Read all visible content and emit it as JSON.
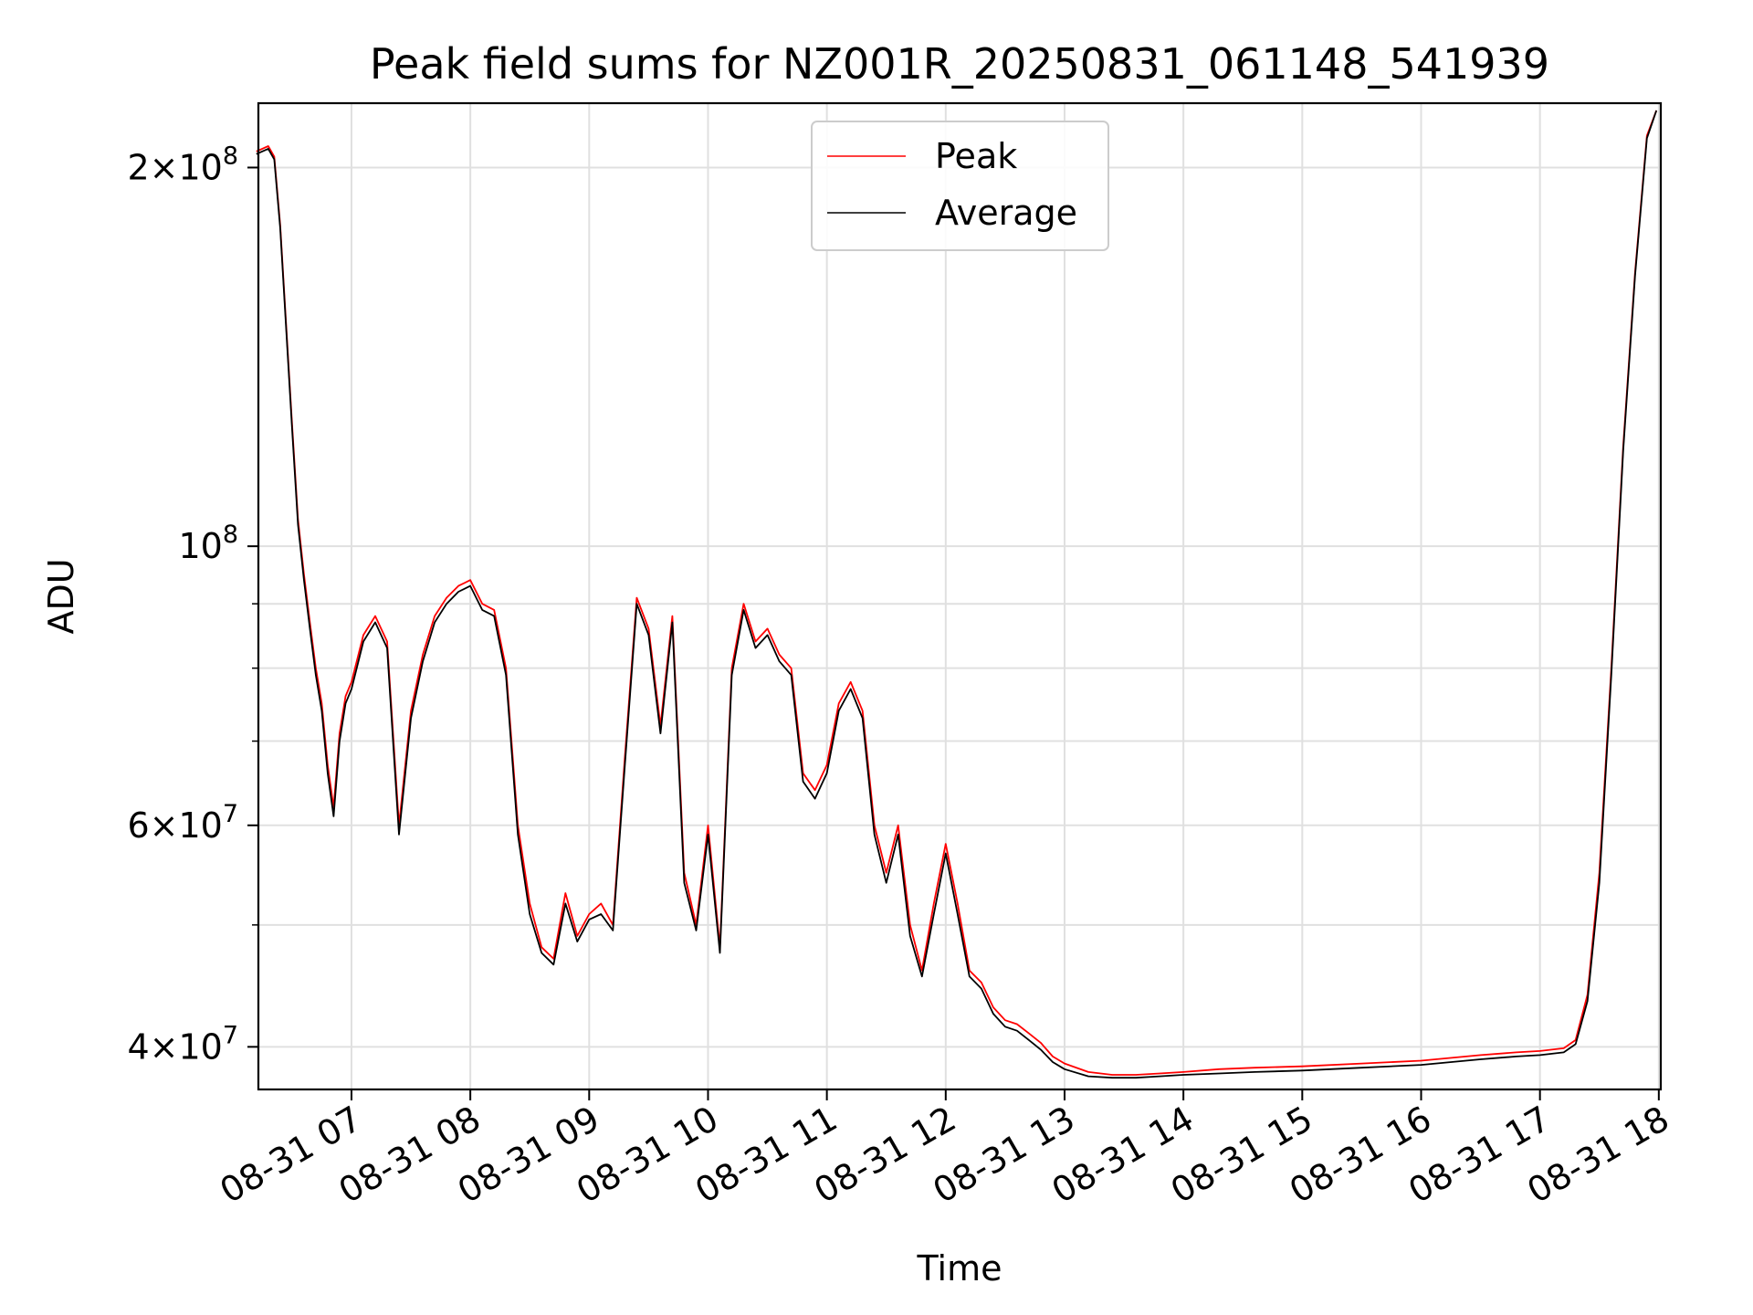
{
  "chart_data": {
    "type": "line",
    "title": "Peak field sums for NZ001R_20250831_061148_541939",
    "xlabel": "Time",
    "ylabel": "ADU",
    "yscale": "log",
    "xlim": [
      "2025-08-31 06:13",
      "2025-08-31 18:01"
    ],
    "ylim": [
      37000000,
      225000000
    ],
    "grid": true,
    "legend_position": "upper center",
    "x_ticks": [
      "08-31 07",
      "08-31 08",
      "08-31 09",
      "08-31 10",
      "08-31 11",
      "08-31 12",
      "08-31 13",
      "08-31 14",
      "08-31 15",
      "08-31 16",
      "08-31 17",
      "08-31 18"
    ],
    "y_ticks": [
      {
        "value": 40000000,
        "mantissa": "4",
        "exp": "7"
      },
      {
        "value": 60000000,
        "mantissa": "6",
        "exp": "7"
      },
      {
        "value": 100000000,
        "mantissa": "",
        "exp": "8"
      },
      {
        "value": 200000000,
        "mantissa": "2",
        "exp": "8"
      }
    ],
    "x_format": "hours since 2025-08-31 00:00",
    "series": [
      {
        "name": "Peak",
        "color": "#ff0000",
        "x": [
          6.2,
          6.3,
          6.35,
          6.4,
          6.45,
          6.5,
          6.55,
          6.6,
          6.65,
          6.7,
          6.75,
          6.8,
          6.85,
          6.9,
          6.95,
          7.0,
          7.1,
          7.2,
          7.3,
          7.4,
          7.5,
          7.6,
          7.7,
          7.8,
          7.9,
          8.0,
          8.1,
          8.2,
          8.3,
          8.4,
          8.5,
          8.6,
          8.7,
          8.8,
          8.9,
          9.0,
          9.1,
          9.2,
          9.3,
          9.4,
          9.5,
          9.6,
          9.7,
          9.8,
          9.9,
          10.0,
          10.1,
          10.2,
          10.3,
          10.4,
          10.5,
          10.6,
          10.7,
          10.8,
          10.9,
          11.0,
          11.1,
          11.2,
          11.3,
          11.4,
          11.5,
          11.6,
          11.7,
          11.8,
          11.9,
          12.0,
          12.1,
          12.2,
          12.3,
          12.4,
          12.5,
          12.6,
          12.7,
          12.8,
          12.9,
          13.0,
          13.2,
          13.4,
          13.6,
          13.8,
          14.0,
          14.3,
          14.6,
          15.0,
          15.5,
          16.0,
          16.5,
          16.8,
          17.0,
          17.2,
          17.3,
          17.4,
          17.5,
          17.6,
          17.7,
          17.8,
          17.9,
          17.98
        ],
        "values": [
          206000000,
          208000000,
          204000000,
          180000000,
          150000000,
          125000000,
          105000000,
          95000000,
          87000000,
          80000000,
          75000000,
          67000000,
          62000000,
          71000000,
          76000000,
          78000000,
          85000000,
          88000000,
          84000000,
          60000000,
          74000000,
          82000000,
          88000000,
          91000000,
          93000000,
          94000000,
          90000000,
          89000000,
          80000000,
          60000000,
          52000000,
          48000000,
          47000000,
          53000000,
          49000000,
          51000000,
          52000000,
          50000000,
          68000000,
          91000000,
          86000000,
          72000000,
          88000000,
          55000000,
          50000000,
          60000000,
          48000000,
          80000000,
          90000000,
          84000000,
          86000000,
          82000000,
          80000000,
          66000000,
          64000000,
          67000000,
          75000000,
          78000000,
          74000000,
          60000000,
          55000000,
          60000000,
          50000000,
          46000000,
          52000000,
          58000000,
          52000000,
          46000000,
          45000000,
          43000000,
          42000000,
          41700000,
          41000000,
          40300000,
          39300000,
          38800000,
          38200000,
          38000000,
          38000000,
          38100000,
          38200000,
          38400000,
          38500000,
          38600000,
          38800000,
          39000000,
          39400000,
          39600000,
          39700000,
          39900000,
          40500000,
          44000000,
          55000000,
          80000000,
          120000000,
          165000000,
          212000000,
          222000000
        ]
      },
      {
        "name": "Average",
        "color": "#000000",
        "x": [
          6.2,
          6.3,
          6.35,
          6.4,
          6.45,
          6.5,
          6.55,
          6.6,
          6.65,
          6.7,
          6.75,
          6.8,
          6.85,
          6.9,
          6.95,
          7.0,
          7.1,
          7.2,
          7.3,
          7.4,
          7.5,
          7.6,
          7.7,
          7.8,
          7.9,
          8.0,
          8.1,
          8.2,
          8.3,
          8.4,
          8.5,
          8.6,
          8.7,
          8.8,
          8.9,
          9.0,
          9.1,
          9.2,
          9.3,
          9.4,
          9.5,
          9.6,
          9.7,
          9.8,
          9.9,
          10.0,
          10.1,
          10.2,
          10.3,
          10.4,
          10.5,
          10.6,
          10.7,
          10.8,
          10.9,
          11.0,
          11.1,
          11.2,
          11.3,
          11.4,
          11.5,
          11.6,
          11.7,
          11.8,
          11.9,
          12.0,
          12.1,
          12.2,
          12.3,
          12.4,
          12.5,
          12.6,
          12.7,
          12.8,
          12.9,
          13.0,
          13.2,
          13.4,
          13.6,
          13.8,
          14.0,
          14.3,
          14.6,
          15.0,
          15.5,
          16.0,
          16.5,
          16.8,
          17.0,
          17.2,
          17.3,
          17.4,
          17.5,
          17.6,
          17.7,
          17.8,
          17.9,
          17.98
        ],
        "values": [
          205000000,
          207000000,
          203000000,
          179000000,
          149000000,
          124000000,
          104000000,
          94000000,
          86000000,
          79000000,
          74000000,
          66000000,
          61000000,
          70000000,
          75000000,
          77000000,
          84000000,
          87000000,
          83000000,
          59000000,
          73000000,
          81000000,
          87000000,
          90000000,
          92000000,
          93000000,
          89000000,
          88000000,
          79000000,
          59000000,
          51000000,
          47500000,
          46500000,
          52000000,
          48500000,
          50500000,
          51000000,
          49500000,
          67000000,
          90000000,
          85000000,
          71000000,
          87000000,
          54000000,
          49500000,
          59000000,
          47500000,
          79000000,
          89000000,
          83000000,
          85000000,
          81000000,
          79000000,
          65000000,
          63000000,
          66000000,
          74000000,
          77000000,
          73000000,
          59000000,
          54000000,
          59000000,
          49000000,
          45500000,
          51000000,
          57000000,
          51000000,
          45500000,
          44500000,
          42500000,
          41500000,
          41200000,
          40500000,
          39800000,
          38900000,
          38400000,
          37900000,
          37800000,
          37800000,
          37900000,
          38000000,
          38100000,
          38200000,
          38300000,
          38500000,
          38700000,
          39100000,
          39300000,
          39400000,
          39600000,
          40200000,
          43500000,
          54000000,
          79000000,
          119000000,
          164000000,
          211000000,
          222000000
        ]
      }
    ]
  }
}
